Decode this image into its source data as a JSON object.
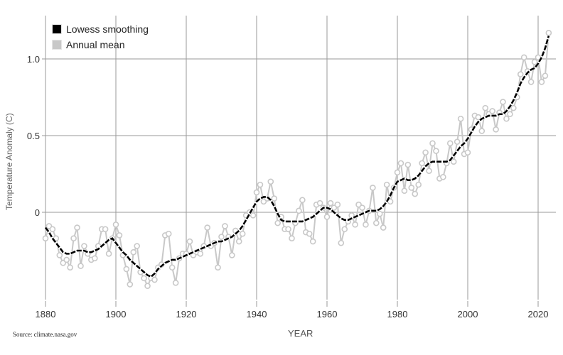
{
  "legend": {
    "items": [
      {
        "label": "Lowess smoothing",
        "color": "#000000"
      },
      {
        "label": "Annual mean",
        "color": "#c8c8c8"
      }
    ]
  },
  "source_note": "Source: climate.nasa.gov",
  "chart_data": {
    "type": "line",
    "title": "",
    "xlabel": "YEAR",
    "ylabel": "Temperature Anomaly (C)",
    "xlim": [
      1880,
      2024
    ],
    "ylim": [
      -0.55,
      1.3
    ],
    "x_ticks": [
      1880,
      1900,
      1920,
      1940,
      1960,
      1980,
      2000,
      2020
    ],
    "y_ticks": [
      0,
      0.5,
      1.0
    ],
    "y_tick_labels": [
      "0",
      "0.5",
      "1.0"
    ],
    "grid": true,
    "legend_position": "upper left",
    "x": [
      1880,
      1881,
      1882,
      1883,
      1884,
      1885,
      1886,
      1887,
      1888,
      1889,
      1890,
      1891,
      1892,
      1893,
      1894,
      1895,
      1896,
      1897,
      1898,
      1899,
      1900,
      1901,
      1902,
      1903,
      1904,
      1905,
      1906,
      1907,
      1908,
      1909,
      1910,
      1911,
      1912,
      1913,
      1914,
      1915,
      1916,
      1917,
      1918,
      1919,
      1920,
      1921,
      1922,
      1923,
      1924,
      1925,
      1926,
      1927,
      1928,
      1929,
      1930,
      1931,
      1932,
      1933,
      1934,
      1935,
      1936,
      1937,
      1938,
      1939,
      1940,
      1941,
      1942,
      1943,
      1944,
      1945,
      1946,
      1947,
      1948,
      1949,
      1950,
      1951,
      1952,
      1953,
      1954,
      1955,
      1956,
      1957,
      1958,
      1959,
      1960,
      1961,
      1962,
      1963,
      1964,
      1965,
      1966,
      1967,
      1968,
      1969,
      1970,
      1971,
      1972,
      1973,
      1974,
      1975,
      1976,
      1977,
      1978,
      1979,
      1980,
      1981,
      1982,
      1983,
      1984,
      1985,
      1986,
      1987,
      1988,
      1989,
      1990,
      1991,
      1992,
      1993,
      1994,
      1995,
      1996,
      1997,
      1998,
      1999,
      2000,
      2001,
      2002,
      2003,
      2004,
      2005,
      2006,
      2007,
      2008,
      2009,
      2010,
      2011,
      2012,
      2013,
      2014,
      2015,
      2016,
      2017,
      2018,
      2019,
      2020,
      2021,
      2022,
      2023
    ],
    "series": [
      {
        "name": "Annual mean",
        "color": "#c8c8c8",
        "values": [
          -0.17,
          -0.09,
          -0.11,
          -0.17,
          -0.28,
          -0.33,
          -0.31,
          -0.36,
          -0.17,
          -0.1,
          -0.35,
          -0.22,
          -0.27,
          -0.31,
          -0.3,
          -0.22,
          -0.11,
          -0.11,
          -0.27,
          -0.17,
          -0.08,
          -0.15,
          -0.28,
          -0.37,
          -0.47,
          -0.26,
          -0.22,
          -0.39,
          -0.43,
          -0.48,
          -0.43,
          -0.44,
          -0.36,
          -0.34,
          -0.15,
          -0.14,
          -0.36,
          -0.46,
          -0.3,
          -0.27,
          -0.27,
          -0.19,
          -0.28,
          -0.26,
          -0.27,
          -0.22,
          -0.1,
          -0.22,
          -0.2,
          -0.36,
          -0.16,
          -0.09,
          -0.16,
          -0.28,
          -0.12,
          -0.19,
          -0.14,
          -0.02,
          -0.0,
          -0.02,
          0.13,
          0.18,
          0.07,
          0.09,
          0.2,
          0.09,
          -0.07,
          -0.03,
          -0.11,
          -0.11,
          -0.17,
          -0.07,
          0.01,
          0.08,
          -0.13,
          -0.14,
          -0.19,
          0.05,
          0.06,
          0.03,
          -0.03,
          0.06,
          0.03,
          0.05,
          -0.2,
          -0.11,
          -0.06,
          -0.02,
          -0.08,
          0.05,
          0.03,
          -0.08,
          0.01,
          0.16,
          -0.07,
          -0.01,
          -0.1,
          0.18,
          0.07,
          0.16,
          0.26,
          0.32,
          0.14,
          0.31,
          0.16,
          0.12,
          0.18,
          0.32,
          0.39,
          0.27,
          0.45,
          0.4,
          0.22,
          0.23,
          0.32,
          0.45,
          0.33,
          0.46,
          0.61,
          0.38,
          0.39,
          0.54,
          0.63,
          0.62,
          0.53,
          0.68,
          0.64,
          0.66,
          0.54,
          0.65,
          0.72,
          0.61,
          0.64,
          0.68,
          0.75,
          0.9,
          1.01,
          0.92,
          0.85,
          0.98,
          1.01,
          0.85,
          0.89,
          1.17
        ]
      },
      {
        "name": "Lowess smoothing",
        "color": "#000000",
        "values": [
          -0.1,
          -0.13,
          -0.17,
          -0.2,
          -0.23,
          -0.26,
          -0.27,
          -0.27,
          -0.26,
          -0.25,
          -0.25,
          -0.25,
          -0.26,
          -0.26,
          -0.25,
          -0.24,
          -0.22,
          -0.2,
          -0.18,
          -0.17,
          -0.2,
          -0.23,
          -0.26,
          -0.28,
          -0.31,
          -0.33,
          -0.35,
          -0.37,
          -0.39,
          -0.41,
          -0.42,
          -0.4,
          -0.37,
          -0.35,
          -0.33,
          -0.32,
          -0.31,
          -0.31,
          -0.3,
          -0.29,
          -0.28,
          -0.27,
          -0.26,
          -0.25,
          -0.24,
          -0.23,
          -0.22,
          -0.21,
          -0.2,
          -0.19,
          -0.19,
          -0.18,
          -0.17,
          -0.16,
          -0.14,
          -0.12,
          -0.09,
          -0.05,
          -0.01,
          0.03,
          0.07,
          0.09,
          0.1,
          0.1,
          0.08,
          0.04,
          -0.01,
          -0.05,
          -0.06,
          -0.06,
          -0.06,
          -0.06,
          -0.06,
          -0.06,
          -0.05,
          -0.04,
          -0.03,
          -0.01,
          0.01,
          0.03,
          0.03,
          0.02,
          0.0,
          -0.02,
          -0.04,
          -0.05,
          -0.05,
          -0.04,
          -0.03,
          -0.02,
          -0.01,
          0.0,
          0.01,
          0.01,
          0.01,
          0.02,
          0.04,
          0.07,
          0.11,
          0.16,
          0.2,
          0.21,
          0.22,
          0.21,
          0.21,
          0.22,
          0.24,
          0.27,
          0.3,
          0.32,
          0.33,
          0.33,
          0.33,
          0.33,
          0.33,
          0.34,
          0.37,
          0.4,
          0.43,
          0.45,
          0.48,
          0.52,
          0.56,
          0.59,
          0.61,
          0.62,
          0.63,
          0.63,
          0.63,
          0.64,
          0.64,
          0.66,
          0.69,
          0.73,
          0.78,
          0.84,
          0.88,
          0.91,
          0.93,
          0.94,
          0.97,
          1.01,
          1.07,
          1.15
        ]
      }
    ],
    "annotations": [
      "Source: climate.nasa.gov"
    ]
  }
}
